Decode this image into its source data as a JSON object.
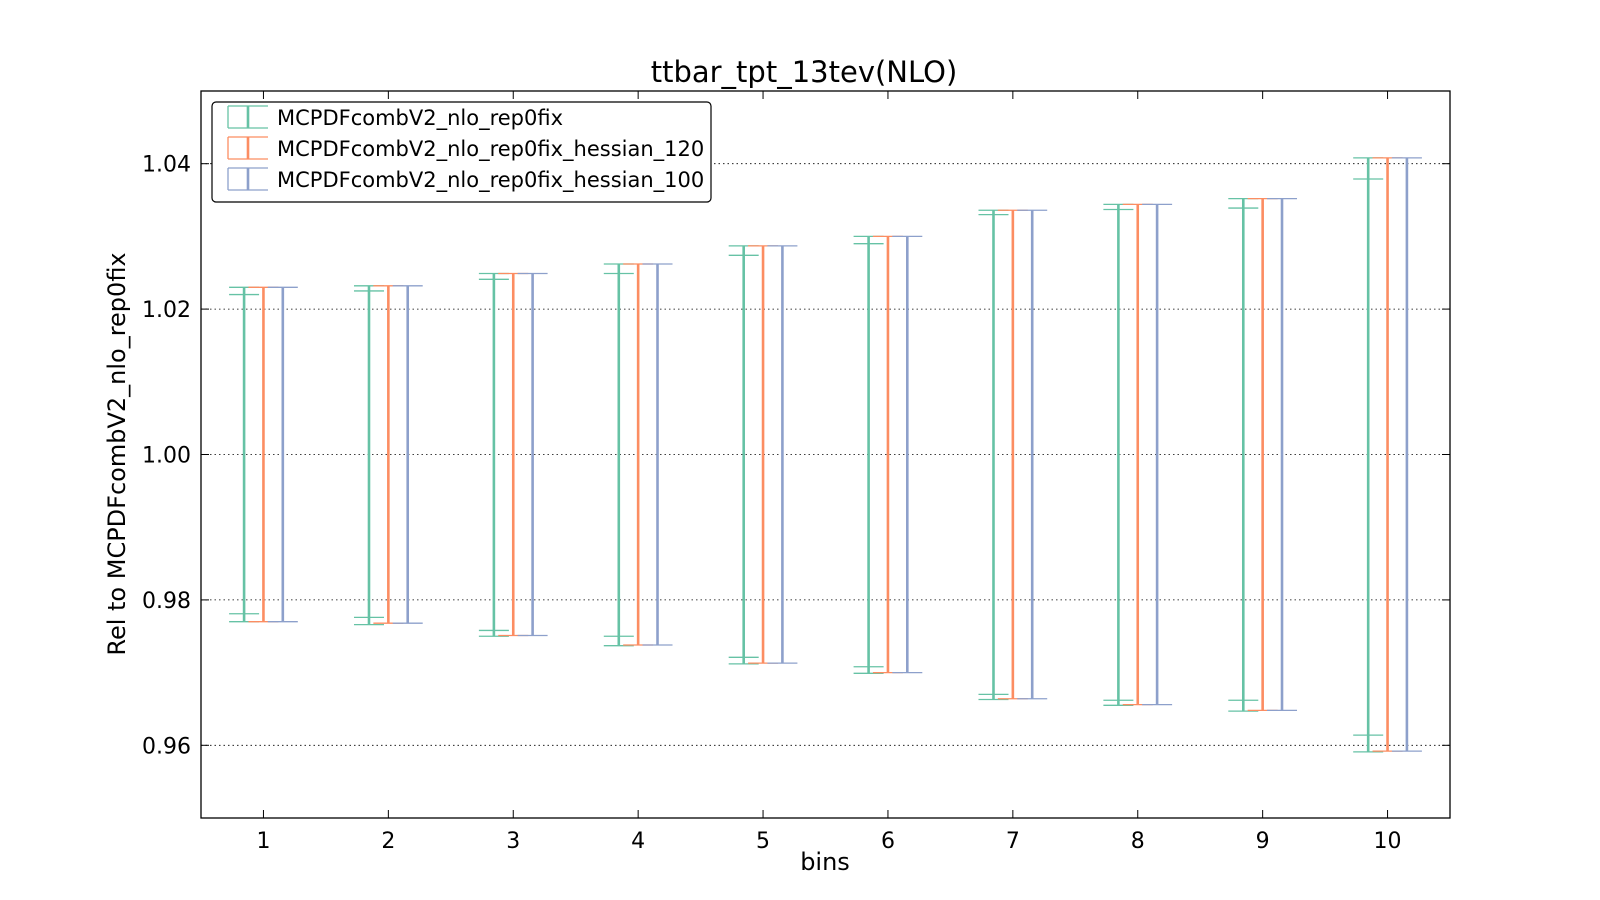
{
  "chart_data": {
    "type": "errorbar",
    "title": "ttbar_tpt_13tev(NLO)",
    "xlabel": "bins",
    "ylabel": "Rel to MCPDFcombV2_nlo_rep0fix",
    "xlim": [
      0.5,
      10.5
    ],
    "ylim": [
      0.95,
      1.05
    ],
    "x_ticks": [
      1,
      2,
      3,
      4,
      5,
      6,
      7,
      8,
      9,
      10
    ],
    "y_ticks": [
      0.96,
      0.98,
      1.0,
      1.02,
      1.04
    ],
    "y_tick_labels": [
      "0.96",
      "0.98",
      "1.00",
      "1.02",
      "1.04"
    ],
    "grid": "horizontal dotted at y ticks",
    "legend_position": "upper-left",
    "categories": [
      1,
      2,
      3,
      4,
      5,
      6,
      7,
      8,
      9,
      10
    ],
    "series": [
      {
        "name": "MCPDFcombV2_nlo_rep0fix",
        "color": "#66c2a5",
        "upper": [
          1.023,
          1.0232,
          1.0249,
          1.0262,
          1.0287,
          1.03,
          1.0336,
          1.0344,
          1.0352,
          1.0408
        ],
        "lower": [
          0.977,
          0.9766,
          0.975,
          0.9737,
          0.9712,
          0.9699,
          0.9663,
          0.9655,
          0.9647,
          0.9591
        ],
        "inner_upper": [
          1.022,
          1.0225,
          1.0241,
          1.0249,
          1.0274,
          1.029,
          1.033,
          1.0337,
          1.0339,
          1.0379
        ],
        "inner_lower": [
          0.9781,
          0.9776,
          0.9758,
          0.975,
          0.9721,
          0.9708,
          0.967,
          0.9662,
          0.9662,
          0.9614
        ]
      },
      {
        "name": "MCPDFcombV2_nlo_rep0fix_hessian_120",
        "color": "#fc8d62",
        "upper": [
          1.023,
          1.0232,
          1.0249,
          1.0262,
          1.0287,
          1.03,
          1.0336,
          1.0344,
          1.0352,
          1.0408
        ],
        "lower": [
          0.977,
          0.9768,
          0.9751,
          0.9738,
          0.9713,
          0.97,
          0.9664,
          0.9656,
          0.9648,
          0.9592
        ]
      },
      {
        "name": "MCPDFcombV2_nlo_rep0fix_hessian_100",
        "color": "#8da0cb",
        "upper": [
          1.023,
          1.0232,
          1.0249,
          1.0262,
          1.0287,
          1.03,
          1.0336,
          1.0344,
          1.0352,
          1.0408
        ],
        "lower": [
          0.977,
          0.9768,
          0.9751,
          0.9738,
          0.9713,
          0.97,
          0.9664,
          0.9656,
          0.9648,
          0.9592
        ]
      }
    ]
  }
}
